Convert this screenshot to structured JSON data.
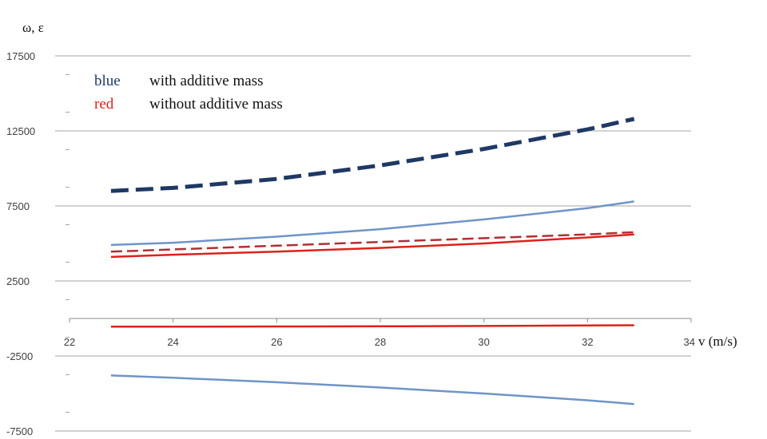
{
  "chart_data": {
    "type": "line",
    "ylabel": "ω, ε",
    "xlabel": "v (m/s)",
    "xlim": [
      22,
      34
    ],
    "ylim": [
      -7500,
      17500
    ],
    "xticks": [
      "22",
      "24",
      "26",
      "28",
      "30",
      "32",
      "34"
    ],
    "yticks": [
      "17500",
      "12500",
      "7500",
      "2500",
      "-2500",
      "-7500"
    ],
    "ytick_values": [
      17500,
      12500,
      7500,
      2500,
      -2500,
      -7500
    ],
    "x_axis_at": 0,
    "grid": "horizontal",
    "legend": [
      {
        "key": "blue",
        "text": "with additive mass",
        "color": "#1f3864"
      },
      {
        "key": "red",
        "text": "without additive mass",
        "color": "#e0201b"
      }
    ],
    "series": [
      {
        "color": "#1f3864",
        "style": "dashed",
        "x": [
          22.8,
          24,
          26,
          28,
          30,
          32,
          32.9
        ],
        "values": [
          8500,
          8700,
          9300,
          10200,
          11300,
          12600,
          13300
        ]
      },
      {
        "color": "#6f94c8",
        "style": "solid",
        "x": [
          22.8,
          24,
          26,
          28,
          30,
          32,
          32.9
        ],
        "values": [
          4900,
          5050,
          5450,
          5950,
          6600,
          7350,
          7800
        ]
      },
      {
        "color": "#b03030",
        "style": "dashed",
        "x": [
          22.8,
          24,
          26,
          28,
          30,
          32,
          32.9
        ],
        "values": [
          4450,
          4600,
          4850,
          5100,
          5350,
          5600,
          5750
        ]
      },
      {
        "color": "#e0201b",
        "style": "solid",
        "x": [
          22.8,
          24,
          26,
          28,
          30,
          32,
          32.9
        ],
        "values": [
          4100,
          4250,
          4450,
          4700,
          5000,
          5400,
          5600
        ]
      },
      {
        "color": "#e0201b",
        "style": "solid",
        "x": [
          22.8,
          24,
          26,
          28,
          30,
          32,
          32.9
        ],
        "values": [
          -550,
          -550,
          -530,
          -520,
          -500,
          -470,
          -450
        ]
      },
      {
        "color": "#6f94c8",
        "style": "solid",
        "x": [
          22.8,
          24,
          26,
          28,
          30,
          32,
          32.9
        ],
        "values": [
          -3800,
          -3950,
          -4250,
          -4600,
          -5000,
          -5450,
          -5700
        ]
      }
    ]
  }
}
